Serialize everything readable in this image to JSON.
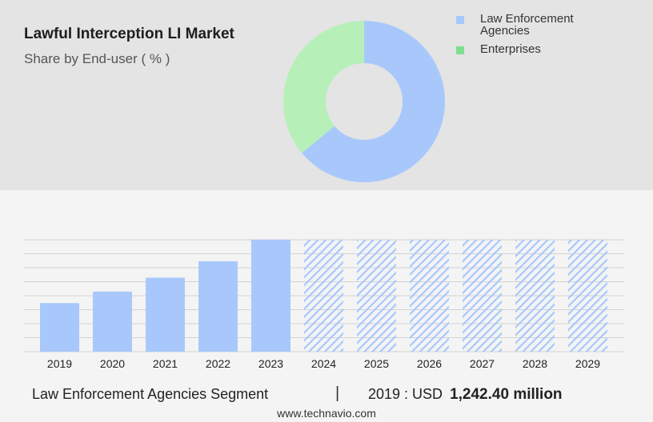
{
  "header": {
    "title": "Lawful Interception LI Market",
    "subtitle": "Share by End-user ( % )"
  },
  "legend": [
    {
      "lines": [
        "Law Enforcement",
        "Agencies"
      ],
      "color": "#a8c8fc"
    },
    {
      "lines": [
        "Enterprises"
      ],
      "color": "#7de08f"
    }
  ],
  "chart_data": [
    {
      "type": "pie",
      "variant": "donut",
      "title": "",
      "slices": [
        {
          "label": "Law Enforcement Agencies",
          "value": 64,
          "color": "#a8c8fc"
        },
        {
          "label": "Enterprises",
          "value": 36,
          "color": "#b6f0b8"
        }
      ]
    },
    {
      "type": "bar",
      "title": "",
      "xlabel": "",
      "ylabel": "",
      "categories": [
        "2019",
        "2020",
        "2021",
        "2022",
        "2023",
        "2024",
        "2025",
        "2026",
        "2027",
        "2028",
        "2029"
      ],
      "values": [
        1242.4,
        1536,
        1890,
        2310,
        2860,
        2860,
        2860,
        2860,
        2860,
        2860,
        2860
      ],
      "forecast_from_index": 5,
      "ylim": [
        0,
        2860
      ],
      "grid": true,
      "colors": {
        "bar": "#a8c8fc",
        "forecast_hatch": "#a8c8fc",
        "grid": "#d2d2d2"
      }
    }
  ],
  "footer": {
    "segment": "Law Enforcement Agencies Segment",
    "divider": "|",
    "value_prefix": "2019 : USD",
    "value_strong": "1,242.40 million",
    "source": "www.technavio.com"
  }
}
